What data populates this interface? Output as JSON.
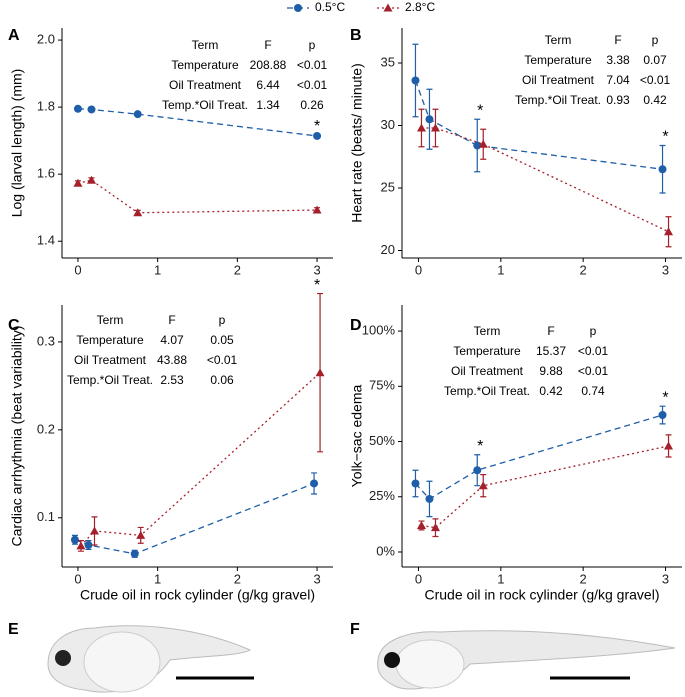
{
  "legend": [
    {
      "name": "0.5°C",
      "color": "#1f5ea8",
      "marker": "circle",
      "linestyle": "dashed"
    },
    {
      "name": "2.8°C",
      "color": "#a5202a",
      "marker": "triangle",
      "linestyle": "dotted"
    }
  ],
  "chart_data": [
    {
      "type": "line",
      "label": "A",
      "ylabel": "Log (larval length) (mm)",
      "x": [
        0,
        0.17,
        0.75,
        3
      ],
      "xlim": [
        -0.2,
        3.2
      ],
      "xticks": [
        0,
        1,
        2,
        3
      ],
      "ylim": [
        1.35,
        2.036
      ],
      "yticks": [
        1.4,
        1.6,
        1.8,
        {
          "value": 2,
          "label": "2.0"
        }
      ],
      "series": [
        {
          "color": "#1f5ea8",
          "marker": "circle",
          "linestyle": "dashed",
          "values": [
            1.795,
            1.793,
            1.779,
            1.714
          ],
          "errors": [
            0.003,
            0.003,
            0.003,
            0.003
          ]
        },
        {
          "color": "#a5202a",
          "marker": "triangle",
          "linestyle": "dotted",
          "values": [
            1.573,
            1.582,
            1.485,
            1.493
          ],
          "errors": [
            0.007,
            0.007,
            0.007,
            0.007
          ]
        }
      ],
      "annotations": [
        {
          "text": "*",
          "x": 3
        }
      ],
      "table": {
        "header": [
          "Term",
          "F",
          "p"
        ],
        "rows": [
          [
            "Temperature",
            "208.88",
            "<0.01"
          ],
          [
            "Oil Treatment",
            "6.44",
            "<0.01"
          ],
          [
            "Temp.*Oil Treat.",
            "1.34",
            "0.26"
          ]
        ]
      }
    },
    {
      "type": "line",
      "label": "B",
      "ylabel": "Heart rate (beats/ minute)",
      "x": [
        0,
        0.17,
        0.75,
        3
      ],
      "xlim": [
        -0.2,
        3.2
      ],
      "xticks": [
        0,
        1,
        2,
        3
      ],
      "ylim": [
        19.4,
        37.8
      ],
      "yticks": [
        20,
        25,
        30,
        35
      ],
      "series": [
        {
          "color": "#1f5ea8",
          "marker": "circle",
          "linestyle": "dashed",
          "values": [
            33.6,
            30.5,
            28.4,
            26.5
          ],
          "errors": [
            2.9,
            2.4,
            2.1,
            1.9
          ]
        },
        {
          "color": "#a5202a",
          "marker": "triangle",
          "linestyle": "dotted",
          "values": [
            29.8,
            29.8,
            28.5,
            21.5
          ],
          "errors": [
            1.5,
            1.5,
            1.2,
            1.2
          ]
        }
      ],
      "annotations": [
        {
          "text": "*",
          "x": 0.75
        },
        {
          "text": "*",
          "x": 3
        }
      ],
      "table": {
        "header": [
          "Term",
          "F",
          "p"
        ],
        "rows": [
          [
            "Temperature",
            "3.38",
            "0.07"
          ],
          [
            "Oil Treatment",
            "7.04",
            "<0.01"
          ],
          [
            "Temp.*Oil Treat.",
            "0.93",
            "0.42"
          ]
        ]
      }
    },
    {
      "type": "line",
      "label": "C",
      "ylabel": "Cardiac arrhythmia (beat variability)",
      "xlabel": "Crude oil in rock cylinder (g/kg gravel)",
      "x": [
        0,
        0.17,
        0.75,
        3
      ],
      "xlim": [
        -0.2,
        3.2
      ],
      "xticks": [
        0,
        1,
        2,
        3
      ],
      "ylim": [
        0.044,
        0.342
      ],
      "yticks": [
        0.1,
        0.2,
        0.3
      ],
      "series": [
        {
          "color": "#1f5ea8",
          "marker": "circle",
          "linestyle": "dashed",
          "values": [
            0.075,
            0.069,
            0.059,
            0.139
          ],
          "errors": [
            0.005,
            0.005,
            0.004,
            0.012
          ]
        },
        {
          "color": "#a5202a",
          "marker": "triangle",
          "linestyle": "dotted",
          "values": [
            0.068,
            0.085,
            0.08,
            0.265
          ],
          "errors": [
            0.006,
            0.016,
            0.009,
            0.09
          ]
        }
      ],
      "annotations": [
        {
          "text": "*",
          "x": 3
        }
      ],
      "table": {
        "header": [
          "Term",
          "F",
          "p"
        ],
        "rows": [
          [
            "Temperature",
            "4.07",
            "0.05"
          ],
          [
            "Oil Treatment",
            "43.88",
            "<0.01"
          ],
          [
            "Temp.*Oil Treat.",
            "2.53",
            "0.06"
          ]
        ]
      }
    },
    {
      "type": "line",
      "label": "D",
      "ylabel": "Yolk−sac edema",
      "xlabel": "Crude oil in rock cylinder (g/kg gravel)",
      "x": [
        0,
        0.17,
        0.75,
        3
      ],
      "xlim": [
        -0.2,
        3.2
      ],
      "xticks": [
        0,
        1,
        2,
        3
      ],
      "ylim": [
        -6.8,
        111.8
      ],
      "yticks": [
        {
          "value": 0,
          "label": "0%"
        },
        {
          "value": 25,
          "label": "25%"
        },
        {
          "value": 50,
          "label": "50%"
        },
        {
          "value": 75,
          "label": "75%"
        },
        {
          "value": 100,
          "label": "100%"
        }
      ],
      "series": [
        {
          "color": "#1f5ea8",
          "marker": "circle",
          "linestyle": "dashed",
          "values": [
            31,
            24,
            37,
            62
          ],
          "errors": [
            6,
            8,
            7,
            4
          ]
        },
        {
          "color": "#a5202a",
          "marker": "triangle",
          "linestyle": "dotted",
          "values": [
            12,
            11,
            30,
            48
          ],
          "errors": [
            2,
            4,
            5,
            5
          ]
        }
      ],
      "annotations": [
        {
          "text": "*",
          "x": 0.75
        },
        {
          "text": "*",
          "x": 3
        }
      ],
      "table": {
        "header": [
          "Term",
          "F",
          "p"
        ],
        "rows": [
          [
            "Temperature",
            "15.37",
            "<0.01"
          ],
          [
            "Oil Treatment",
            "9.88",
            "<0.01"
          ],
          [
            "Temp.*Oil Treat.",
            "0.42",
            "0.74"
          ]
        ]
      }
    }
  ],
  "images": [
    {
      "label": "E"
    },
    {
      "label": "F"
    }
  ]
}
